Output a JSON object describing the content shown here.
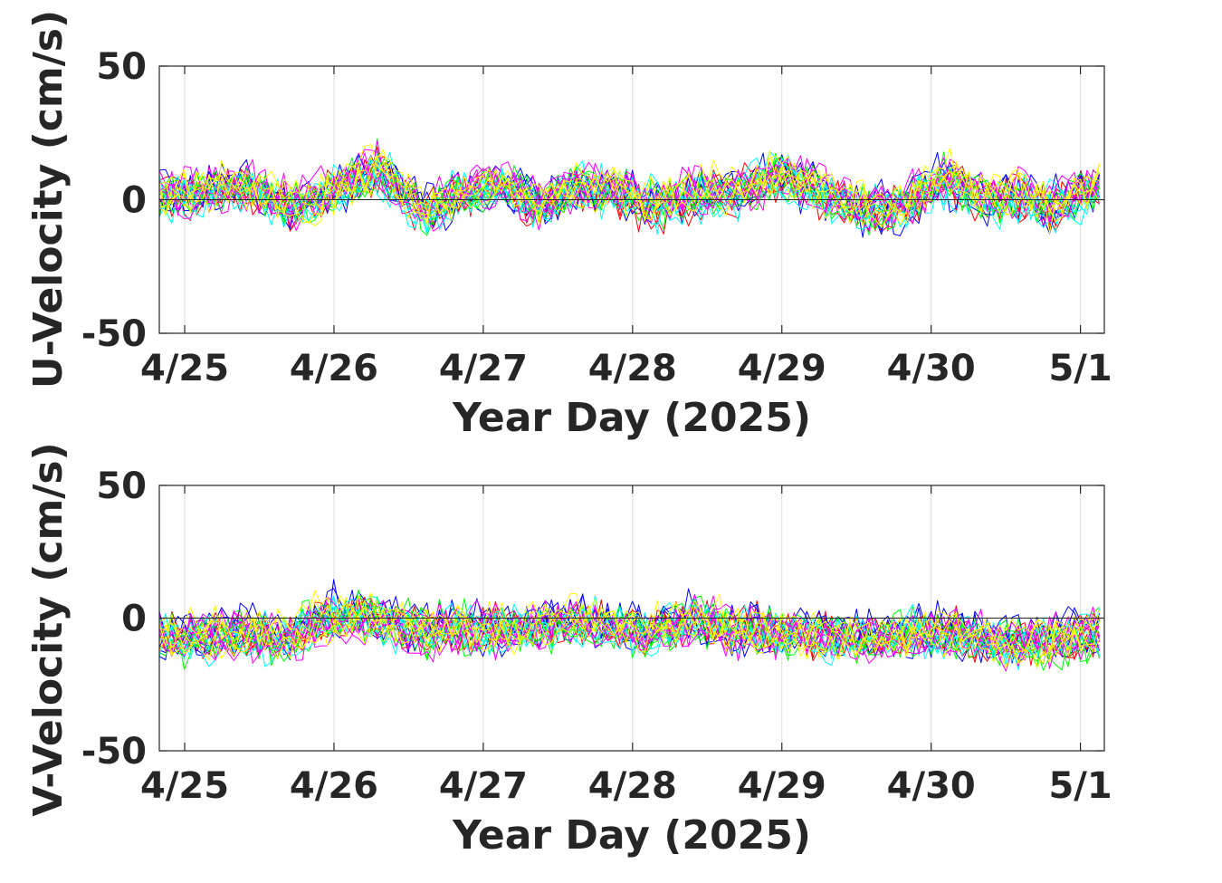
{
  "chart_data": [
    {
      "type": "line",
      "xlabel": "Year Day (2025)",
      "ylabel": "U-Velocity (cm/s)",
      "ylim": [
        -50,
        50
      ],
      "yticks": [
        -50,
        0,
        50
      ],
      "xlim": [
        24.83,
        31.16
      ],
      "xticks": [
        {
          "v": 25,
          "label": "4/25"
        },
        {
          "v": 26,
          "label": "4/26"
        },
        {
          "v": 27,
          "label": "4/27"
        },
        {
          "v": 28,
          "label": "4/28"
        },
        {
          "v": 29,
          "label": "4/29"
        },
        {
          "v": 30,
          "label": "4/30"
        },
        {
          "v": 31,
          "label": "5/1"
        }
      ],
      "grid": "x",
      "series_colors": [
        "#ff0000",
        "#0000ff",
        "#00ff00",
        "#00ffff",
        "#ff00ff",
        "#ffff00"
      ],
      "series_count_per_color": 5,
      "sample_step_days": 0.0417,
      "approx_range": [
        -23,
        27
      ],
      "anchors_x": [
        24.83,
        25.0,
        25.4,
        25.7,
        26.0,
        26.3,
        26.6,
        26.8,
        27.1,
        27.4,
        27.6,
        27.9,
        28.1,
        28.4,
        28.7,
        29.0,
        29.3,
        29.6,
        29.8,
        30.1,
        30.4,
        30.6,
        30.8,
        31.1
      ],
      "anchors_y": [
        3,
        1,
        6,
        -3,
        3,
        12,
        -5,
        2,
        5,
        -2,
        4,
        3,
        -2,
        2,
        3,
        10,
        2,
        -4,
        -2,
        8,
        0,
        2,
        -3,
        5
      ]
    },
    {
      "type": "line",
      "xlabel": "Year Day (2025)",
      "ylabel": "V-Velocity (cm/s)",
      "ylim": [
        -50,
        50
      ],
      "yticks": [
        -50,
        0,
        50
      ],
      "xlim": [
        24.83,
        31.16
      ],
      "xticks": [
        {
          "v": 25,
          "label": "4/25"
        },
        {
          "v": 26,
          "label": "4/26"
        },
        {
          "v": 27,
          "label": "4/27"
        },
        {
          "v": 28,
          "label": "4/28"
        },
        {
          "v": 29,
          "label": "4/29"
        },
        {
          "v": 30,
          "label": "4/30"
        },
        {
          "v": 31,
          "label": "5/1"
        }
      ],
      "grid": "x",
      "series_colors": [
        "#ff0000",
        "#0000ff",
        "#00ff00",
        "#00ffff",
        "#ff00ff",
        "#ffff00"
      ],
      "series_count_per_color": 5,
      "sample_step_days": 0.0417,
      "approx_range": [
        -26,
        15
      ],
      "anchors_x": [
        24.83,
        25.0,
        25.4,
        25.7,
        26.0,
        26.3,
        26.6,
        26.8,
        27.1,
        27.4,
        27.6,
        27.9,
        28.1,
        28.4,
        28.7,
        29.0,
        29.3,
        29.6,
        29.8,
        30.1,
        30.4,
        30.6,
        30.8,
        31.1
      ],
      "anchors_y": [
        -6,
        -8,
        -5,
        -8,
        2,
        0,
        -5,
        -3,
        -4,
        -3,
        0,
        -3,
        -5,
        0,
        -4,
        -5,
        -6,
        -8,
        -6,
        -5,
        -8,
        -9,
        -8,
        -5
      ]
    }
  ]
}
